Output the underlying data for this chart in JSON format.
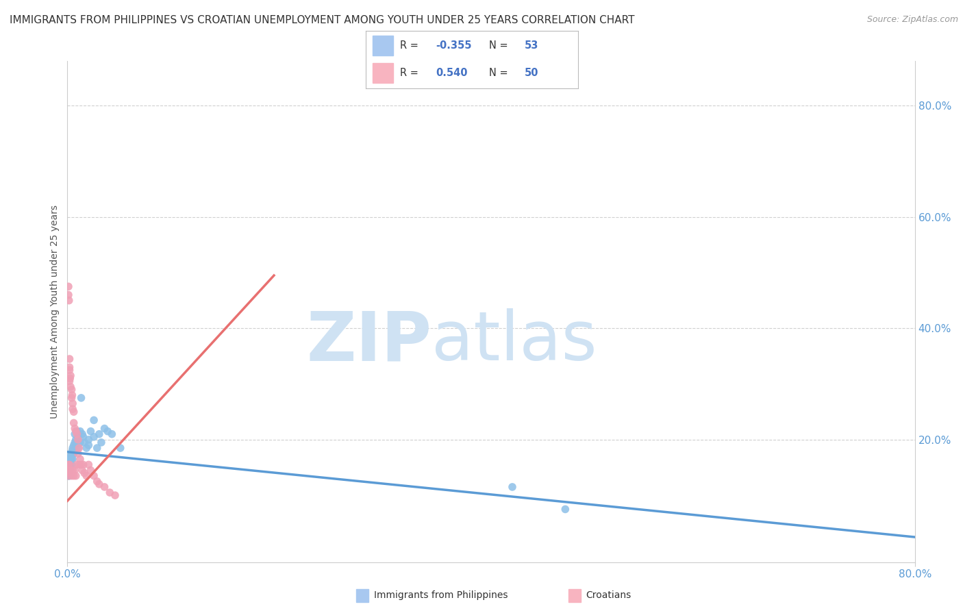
{
  "title": "IMMIGRANTS FROM PHILIPPINES VS CROATIAN UNEMPLOYMENT AMONG YOUTH UNDER 25 YEARS CORRELATION CHART",
  "source": "Source: ZipAtlas.com",
  "ylabel": "Unemployment Among Youth under 25 years",
  "ytick_labels": [
    "20.0%",
    "40.0%",
    "60.0%",
    "80.0%"
  ],
  "ytick_values": [
    0.2,
    0.4,
    0.6,
    0.8
  ],
  "xlim": [
    0,
    0.8
  ],
  "ylim": [
    -0.02,
    0.88
  ],
  "watermark_zip": "ZIP",
  "watermark_atlas": "atlas",
  "watermark_color": "#cfe2f3",
  "blue_scatter": [
    [
      0.0005,
      0.155
    ],
    [
      0.001,
      0.145
    ],
    [
      0.001,
      0.135
    ],
    [
      0.0015,
      0.16
    ],
    [
      0.0015,
      0.14
    ],
    [
      0.002,
      0.155
    ],
    [
      0.002,
      0.15
    ],
    [
      0.002,
      0.145
    ],
    [
      0.002,
      0.135
    ],
    [
      0.0025,
      0.165
    ],
    [
      0.0025,
      0.155
    ],
    [
      0.003,
      0.17
    ],
    [
      0.003,
      0.16
    ],
    [
      0.003,
      0.155
    ],
    [
      0.0035,
      0.17
    ],
    [
      0.004,
      0.175
    ],
    [
      0.004,
      0.165
    ],
    [
      0.004,
      0.155
    ],
    [
      0.0045,
      0.18
    ],
    [
      0.005,
      0.185
    ],
    [
      0.005,
      0.175
    ],
    [
      0.005,
      0.165
    ],
    [
      0.006,
      0.19
    ],
    [
      0.006,
      0.175
    ],
    [
      0.007,
      0.21
    ],
    [
      0.007,
      0.195
    ],
    [
      0.008,
      0.2
    ],
    [
      0.008,
      0.185
    ],
    [
      0.009,
      0.215
    ],
    [
      0.009,
      0.195
    ],
    [
      0.01,
      0.205
    ],
    [
      0.01,
      0.185
    ],
    [
      0.012,
      0.215
    ],
    [
      0.012,
      0.195
    ],
    [
      0.013,
      0.275
    ],
    [
      0.014,
      0.21
    ],
    [
      0.015,
      0.205
    ],
    [
      0.016,
      0.195
    ],
    [
      0.018,
      0.185
    ],
    [
      0.02,
      0.2
    ],
    [
      0.02,
      0.19
    ],
    [
      0.022,
      0.215
    ],
    [
      0.025,
      0.235
    ],
    [
      0.025,
      0.205
    ],
    [
      0.028,
      0.185
    ],
    [
      0.03,
      0.21
    ],
    [
      0.032,
      0.195
    ],
    [
      0.035,
      0.22
    ],
    [
      0.038,
      0.215
    ],
    [
      0.042,
      0.21
    ],
    [
      0.05,
      0.185
    ],
    [
      0.42,
      0.115
    ],
    [
      0.47,
      0.075
    ]
  ],
  "pink_scatter": [
    [
      0.0005,
      0.145
    ],
    [
      0.001,
      0.155
    ],
    [
      0.001,
      0.135
    ],
    [
      0.001,
      0.46
    ],
    [
      0.001,
      0.475
    ],
    [
      0.0015,
      0.45
    ],
    [
      0.002,
      0.155
    ],
    [
      0.002,
      0.14
    ],
    [
      0.002,
      0.33
    ],
    [
      0.002,
      0.345
    ],
    [
      0.002,
      0.305
    ],
    [
      0.002,
      0.325
    ],
    [
      0.0025,
      0.31
    ],
    [
      0.003,
      0.295
    ],
    [
      0.003,
      0.315
    ],
    [
      0.003,
      0.145
    ],
    [
      0.004,
      0.275
    ],
    [
      0.004,
      0.29
    ],
    [
      0.004,
      0.135
    ],
    [
      0.0045,
      0.28
    ],
    [
      0.005,
      0.265
    ],
    [
      0.005,
      0.255
    ],
    [
      0.005,
      0.145
    ],
    [
      0.006,
      0.25
    ],
    [
      0.006,
      0.23
    ],
    [
      0.006,
      0.135
    ],
    [
      0.007,
      0.22
    ],
    [
      0.007,
      0.145
    ],
    [
      0.008,
      0.215
    ],
    [
      0.008,
      0.135
    ],
    [
      0.009,
      0.21
    ],
    [
      0.009,
      0.155
    ],
    [
      0.01,
      0.2
    ],
    [
      0.01,
      0.175
    ],
    [
      0.011,
      0.185
    ],
    [
      0.011,
      0.155
    ],
    [
      0.012,
      0.165
    ],
    [
      0.013,
      0.155
    ],
    [
      0.014,
      0.145
    ],
    [
      0.015,
      0.155
    ],
    [
      0.016,
      0.14
    ],
    [
      0.018,
      0.135
    ],
    [
      0.02,
      0.155
    ],
    [
      0.022,
      0.145
    ],
    [
      0.025,
      0.135
    ],
    [
      0.028,
      0.125
    ],
    [
      0.03,
      0.12
    ],
    [
      0.035,
      0.115
    ],
    [
      0.04,
      0.105
    ],
    [
      0.045,
      0.1
    ]
  ],
  "blue_trend": {
    "x_start": 0.0,
    "x_end": 0.8,
    "y_start": 0.178,
    "y_end": 0.025
  },
  "pink_trend": {
    "x_start": 0.0,
    "x_end": 0.195,
    "y_start": 0.09,
    "y_end": 0.495
  },
  "blue_color": "#5b9bd5",
  "pink_color": "#e87070",
  "blue_scatter_color": "#8dc0e8",
  "pink_scatter_color": "#f0a0b5",
  "grid_color": "#d0d0d0",
  "background_color": "#ffffff",
  "title_fontsize": 11,
  "source_fontsize": 9,
  "legend_r1": "-0.355",
  "legend_n1": "53",
  "legend_r2": "0.540",
  "legend_n2": "50",
  "legend_blue_patch": "#a8c8f0",
  "legend_pink_patch": "#f8b4c0",
  "legend_text_color": "#333333",
  "legend_val_color": "#4472c4",
  "bottom_label1": "Immigrants from Philippines",
  "bottom_label2": "Croatians"
}
